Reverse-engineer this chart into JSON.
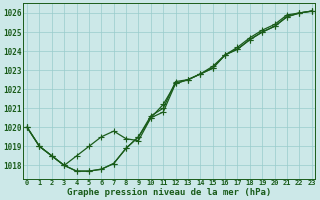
{
  "x": [
    0,
    1,
    2,
    3,
    4,
    5,
    6,
    7,
    8,
    9,
    10,
    11,
    12,
    13,
    14,
    15,
    16,
    17,
    18,
    19,
    20,
    21,
    22,
    23
  ],
  "line1": [
    1020,
    1019,
    1018.5,
    1018,
    1017.7,
    1017.7,
    1017.8,
    1018.1,
    1018.9,
    1019.5,
    1020.5,
    1021.2,
    1022.3,
    1022.5,
    1022.8,
    1023.1,
    1023.8,
    1024.1,
    1024.6,
    1025.0,
    1025.3,
    1025.8,
    1026.0,
    1026.1
  ],
  "line2": [
    1020,
    1019,
    1018.5,
    1018,
    1017.7,
    1017.7,
    1017.8,
    1018.1,
    1018.9,
    1019.5,
    1020.6,
    1021.0,
    1022.4,
    1022.5,
    1022.8,
    1023.2,
    1023.8,
    1024.2,
    1024.7,
    1025.1,
    1025.4,
    1025.9,
    1026.0,
    1026.1
  ],
  "line3": [
    1020,
    1019,
    1018.5,
    1018,
    1018.5,
    1019.0,
    1019.5,
    1019.8,
    1019.4,
    1019.3,
    1020.5,
    1020.8,
    1022.3,
    1022.5,
    1022.8,
    1023.1,
    1023.8,
    1024.1,
    1024.6,
    1025.0,
    1025.3,
    1025.8,
    1026.0,
    1026.1
  ],
  "background": "#cce8e8",
  "grid_color": "#99cccc",
  "line_color": "#1a5c1a",
  "ylabel_values": [
    1018,
    1019,
    1020,
    1021,
    1022,
    1023,
    1024,
    1025,
    1026
  ],
  "xlabel": "Graphe pression niveau de la mer (hPa)",
  "ylim": [
    1017.3,
    1026.5
  ],
  "xlim": [
    -0.3,
    23.3
  ],
  "figwidth": 3.2,
  "figheight": 2.0,
  "dpi": 100
}
